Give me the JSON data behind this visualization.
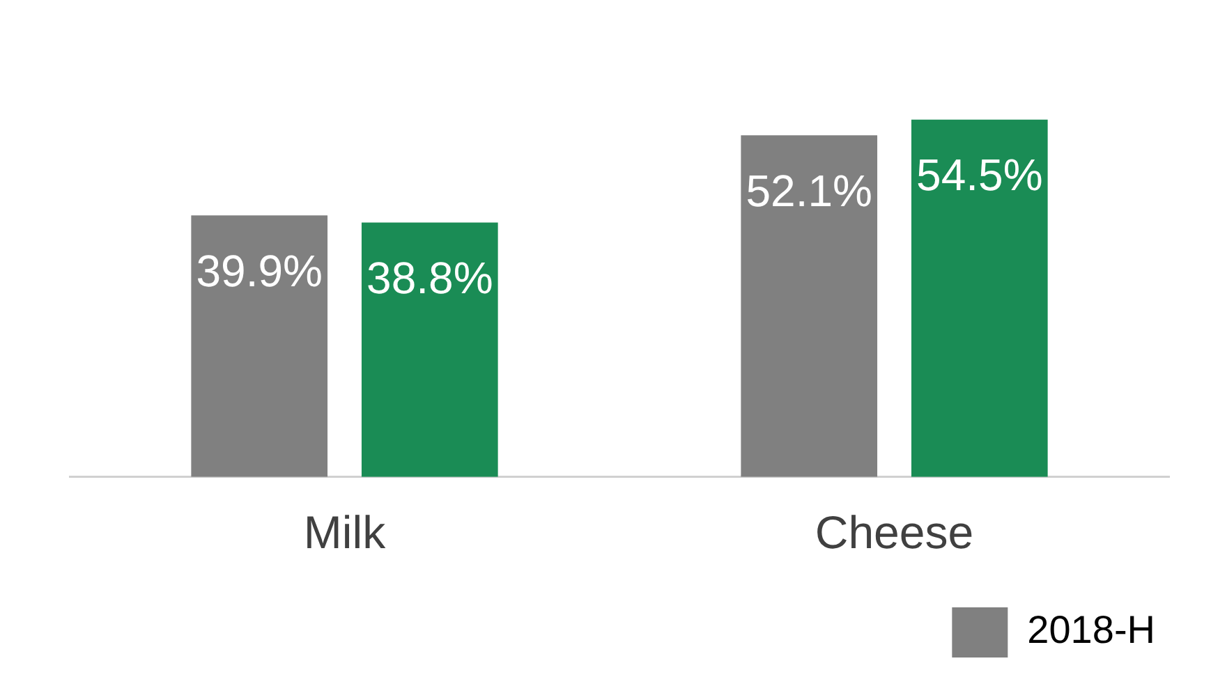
{
  "chart_data": {
    "type": "bar",
    "categories": [
      "Milk",
      "Cheese"
    ],
    "series": [
      {
        "name": "2018-H",
        "color": "#808080",
        "values": [
          39.9,
          52.1
        ],
        "value_labels": [
          "39.9%",
          "52.1%"
        ]
      },
      {
        "color": "#1a8c55",
        "values": [
          38.8,
          54.5
        ],
        "value_labels": [
          "38.8%",
          "54.5%"
        ]
      }
    ],
    "legend": "bottom right",
    "grid": false
  }
}
